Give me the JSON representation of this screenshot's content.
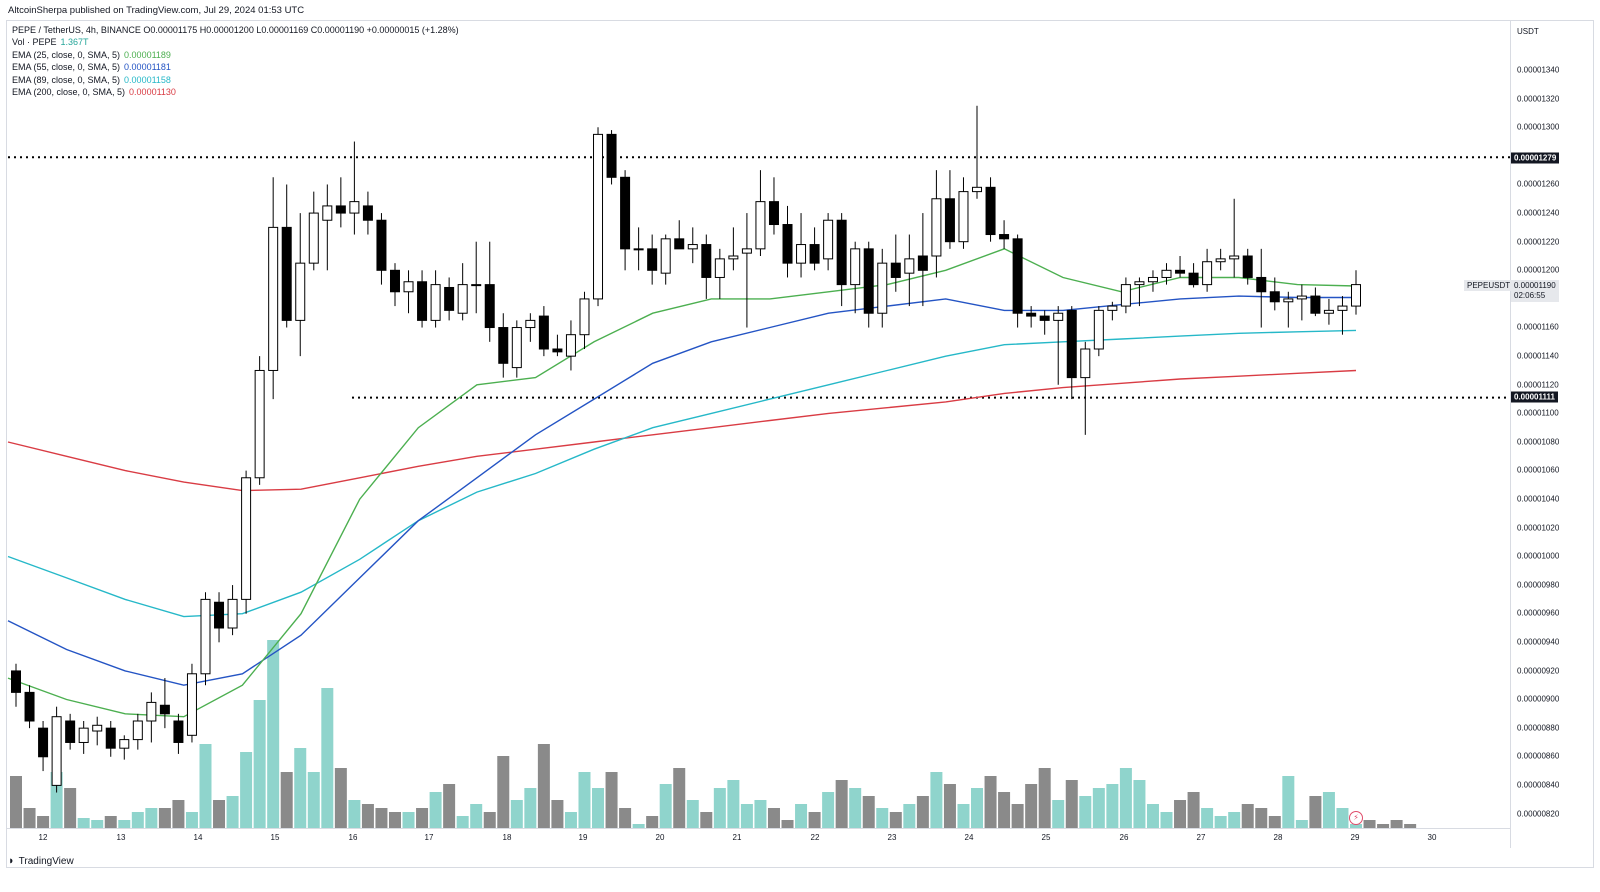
{
  "publisher": "AltcoinSherpa published on TradingView.com, Jul 29, 2024 01:53 UTC",
  "legend": {
    "symbol_line": "PEPE / TetherUS, 4h, BINANCE  O0.00001175  H0.00001200  L0.00001169  C0.00001190  +0.00000015 (+1.28%)",
    "vol_label": "Vol · PEPE",
    "vol_value": "1.367T",
    "ema25_label": "EMA (25, close, 0, SMA, 5)",
    "ema25_value": "0.00001189",
    "ema55_label": "EMA (55, close, 0, SMA, 5)",
    "ema55_value": "0.00001181",
    "ema89_label": "EMA (89, close, 0, SMA, 5)",
    "ema89_value": "0.00001158",
    "ema200_label": "EMA (200, close, 0, SMA, 5)",
    "ema200_value": "0.00001130"
  },
  "price_axis": {
    "currency": "USDT",
    "ticks": [
      "0.00001340",
      "0.00001320",
      "0.00001300",
      "0.00001280",
      "0.00001260",
      "0.00001240",
      "0.00001220",
      "0.00001200",
      "0.00001180",
      "0.00001160",
      "0.00001140",
      "0.00001120",
      "0.00001100",
      "0.00001080",
      "0.00001060",
      "0.00001040",
      "0.00001020",
      "0.00001000",
      "0.00000980",
      "0.00000960",
      "0.00000940",
      "0.00000920",
      "0.00000900",
      "0.00000880",
      "0.00000860",
      "0.00000840",
      "0.00000820"
    ],
    "resistance_label": "0.00001279",
    "support_label": "0.00001111",
    "ticker": "PEPEUSDT",
    "current_price": "0.00001190",
    "countdown": "02:06:55"
  },
  "time_axis": {
    "labels": [
      "12",
      "13",
      "14",
      "15",
      "16",
      "17",
      "18",
      "19",
      "20",
      "21",
      "22",
      "23",
      "24",
      "25",
      "26",
      "27",
      "28",
      "29",
      "30"
    ]
  },
  "branding": "TradingView",
  "colors": {
    "ema25": "#4caf50",
    "ema55": "#2454c4",
    "ema89": "#26b8c8",
    "ema200": "#d93c44",
    "vol_up": "#8fd4cc",
    "vol_down": "#8a8a8a",
    "candle_up": "#ffffff",
    "candle_down": "#000000"
  },
  "chart_data": {
    "type": "candlestick",
    "ylim": [
      8.1e-06,
      1.35e-05
    ],
    "levels": [
      1.279e-05,
      1.111e-05
    ],
    "ema25": [
      9.15e-06,
      9e-06,
      8.9e-06,
      8.88e-06,
      9.1e-06,
      9.6e-06,
      1.04e-05,
      1.09e-05,
      1.12e-05,
      1.125e-05,
      1.15e-05,
      1.17e-05,
      1.18e-05,
      1.18e-05,
      1.185e-05,
      1.19e-05,
      1.2e-05,
      1.215e-05,
      1.195e-05,
      1.185e-05,
      1.195e-05,
      1.195e-05,
      1.19e-05,
      1.189e-05
    ],
    "ema55": [
      9.55e-06,
      9.35e-06,
      9.2e-06,
      9.1e-06,
      9.18e-06,
      9.45e-06,
      9.85e-06,
      1.025e-05,
      1.055e-05,
      1.085e-05,
      1.11e-05,
      1.135e-05,
      1.15e-05,
      1.16e-05,
      1.17e-05,
      1.175e-05,
      1.18e-05,
      1.172e-05,
      1.172e-05,
      1.176e-05,
      1.18e-05,
      1.182e-05,
      1.181e-05,
      1.181e-05
    ],
    "ema89": [
      1e-05,
      9.85e-06,
      9.7e-06,
      9.58e-06,
      9.6e-06,
      9.75e-06,
      9.98e-06,
      1.025e-05,
      1.045e-05,
      1.058e-05,
      1.075e-05,
      1.09e-05,
      1.1e-05,
      1.11e-05,
      1.12e-05,
      1.13e-05,
      1.14e-05,
      1.148e-05,
      1.15e-05,
      1.152e-05,
      1.154e-05,
      1.156e-05,
      1.157e-05,
      1.158e-05
    ],
    "ema200": [
      1.08e-05,
      1.07e-05,
      1.06e-05,
      1.052e-05,
      1.046e-05,
      1.047e-05,
      1.055e-05,
      1.063e-05,
      1.07e-05,
      1.075e-05,
      1.08e-05,
      1.085e-05,
      1.09e-05,
      1.095e-05,
      1.1e-05,
      1.104e-05,
      1.108e-05,
      1.114e-05,
      1.118e-05,
      1.121e-05,
      1.124e-05,
      1.126e-05,
      1.128e-05,
      1.13e-05
    ],
    "candles": [
      {
        "o": 9.2e-06,
        "h": 9.25e-06,
        "l": 8.95e-06,
        "c": 9.05e-06
      },
      {
        "o": 9.05e-06,
        "h": 9.1e-06,
        "l": 8.8e-06,
        "c": 8.85e-06
      },
      {
        "o": 8.8e-06,
        "h": 8.85e-06,
        "l": 8.5e-06,
        "c": 8.6e-06
      },
      {
        "o": 8.4e-06,
        "h": 8.95e-06,
        "l": 8.35e-06,
        "c": 8.88e-06
      },
      {
        "o": 8.85e-06,
        "h": 8.9e-06,
        "l": 8.65e-06,
        "c": 8.7e-06
      },
      {
        "o": 8.7e-06,
        "h": 8.85e-06,
        "l": 8.62e-06,
        "c": 8.8e-06
      },
      {
        "o": 8.78e-06,
        "h": 8.88e-06,
        "l": 8.68e-06,
        "c": 8.82e-06
      },
      {
        "o": 8.8e-06,
        "h": 8.85e-06,
        "l": 8.6e-06,
        "c": 8.66e-06
      },
      {
        "o": 8.66e-06,
        "h": 8.75e-06,
        "l": 8.58e-06,
        "c": 8.72e-06
      },
      {
        "o": 8.72e-06,
        "h": 8.9e-06,
        "l": 8.65e-06,
        "c": 8.85e-06
      },
      {
        "o": 8.85e-06,
        "h": 9.05e-06,
        "l": 8.7e-06,
        "c": 8.98e-06
      },
      {
        "o": 8.96e-06,
        "h": 9.15e-06,
        "l": 8.8e-06,
        "c": 8.9e-06
      },
      {
        "o": 8.85e-06,
        "h": 8.9e-06,
        "l": 8.62e-06,
        "c": 8.7e-06
      },
      {
        "o": 8.75e-06,
        "h": 9.25e-06,
        "l": 8.7e-06,
        "c": 9.18e-06
      },
      {
        "o": 9.18e-06,
        "h": 9.75e-06,
        "l": 9.1e-06,
        "c": 9.7e-06
      },
      {
        "o": 9.68e-06,
        "h": 9.75e-06,
        "l": 9.4e-06,
        "c": 9.5e-06
      },
      {
        "o": 9.5e-06,
        "h": 9.8e-06,
        "l": 9.45e-06,
        "c": 9.7e-06
      },
      {
        "o": 9.7e-06,
        "h": 1.06e-05,
        "l": 9.6e-06,
        "c": 1.055e-05
      },
      {
        "o": 1.055e-05,
        "h": 1.14e-05,
        "l": 1.05e-05,
        "c": 1.13e-05
      },
      {
        "o": 1.13e-05,
        "h": 1.265e-05,
        "l": 1.11e-05,
        "c": 1.23e-05
      },
      {
        "o": 1.23e-05,
        "h": 1.26e-05,
        "l": 1.16e-05,
        "c": 1.165e-05
      },
      {
        "o": 1.165e-05,
        "h": 1.24e-05,
        "l": 1.14e-05,
        "c": 1.205e-05
      },
      {
        "o": 1.205e-05,
        "h": 1.255e-05,
        "l": 1.2e-05,
        "c": 1.24e-05
      },
      {
        "o": 1.235e-05,
        "h": 1.26e-05,
        "l": 1.2e-05,
        "c": 1.245e-05
      },
      {
        "o": 1.245e-05,
        "h": 1.265e-05,
        "l": 1.23e-05,
        "c": 1.24e-05
      },
      {
        "o": 1.24e-05,
        "h": 1.29e-05,
        "l": 1.225e-05,
        "c": 1.248e-05
      },
      {
        "o": 1.245e-05,
        "h": 1.255e-05,
        "l": 1.225e-05,
        "c": 1.235e-05
      },
      {
        "o": 1.235e-05,
        "h": 1.24e-05,
        "l": 1.19e-05,
        "c": 1.2e-05
      },
      {
        "o": 1.2e-05,
        "h": 1.205e-05,
        "l": 1.175e-05,
        "c": 1.185e-05
      },
      {
        "o": 1.185e-05,
        "h": 1.2e-05,
        "l": 1.17e-05,
        "c": 1.192e-05
      },
      {
        "o": 1.192e-05,
        "h": 1.2e-05,
        "l": 1.16e-05,
        "c": 1.165e-05
      },
      {
        "o": 1.165e-05,
        "h": 1.2e-05,
        "l": 1.16e-05,
        "c": 1.19e-05
      },
      {
        "o": 1.188e-05,
        "h": 1.195e-05,
        "l": 1.165e-05,
        "c": 1.172e-05
      },
      {
        "o": 1.17e-05,
        "h": 1.205e-05,
        "l": 1.165e-05,
        "c": 1.19e-05
      },
      {
        "o": 1.19e-05,
        "h": 1.22e-05,
        "l": 1.17e-05,
        "c": 1.19e-05
      },
      {
        "o": 1.19e-05,
        "h": 1.22e-05,
        "l": 1.15e-05,
        "c": 1.16e-05
      },
      {
        "o": 1.16e-05,
        "h": 1.17e-05,
        "l": 1.125e-05,
        "c": 1.135e-05
      },
      {
        "o": 1.132e-05,
        "h": 1.165e-05,
        "l": 1.125e-05,
        "c": 1.16e-05
      },
      {
        "o": 1.16e-05,
        "h": 1.17e-05,
        "l": 1.15e-05,
        "c": 1.165e-05
      },
      {
        "o": 1.168e-05,
        "h": 1.175e-05,
        "l": 1.14e-05,
        "c": 1.145e-05
      },
      {
        "o": 1.145e-05,
        "h": 1.155e-05,
        "l": 1.14e-05,
        "c": 1.143e-05
      },
      {
        "o": 1.14e-05,
        "h": 1.165e-05,
        "l": 1.13e-05,
        "c": 1.155e-05
      },
      {
        "o": 1.155e-05,
        "h": 1.185e-05,
        "l": 1.145e-05,
        "c": 1.18e-05
      },
      {
        "o": 1.18e-05,
        "h": 1.3e-05,
        "l": 1.175e-05,
        "c": 1.295e-05
      },
      {
        "o": 1.295e-05,
        "h": 1.298e-05,
        "l": 1.26e-05,
        "c": 1.265e-05
      },
      {
        "o": 1.265e-05,
        "h": 1.27e-05,
        "l": 1.2e-05,
        "c": 1.215e-05
      },
      {
        "o": 1.215e-05,
        "h": 1.23e-05,
        "l": 1.2e-05,
        "c": 1.215e-05
      },
      {
        "o": 1.215e-05,
        "h": 1.225e-05,
        "l": 1.19e-05,
        "c": 1.2e-05
      },
      {
        "o": 1.198e-05,
        "h": 1.225e-05,
        "l": 1.19e-05,
        "c": 1.222e-05
      },
      {
        "o": 1.222e-05,
        "h": 1.235e-05,
        "l": 1.215e-05,
        "c": 1.215e-05
      },
      {
        "o": 1.215e-05,
        "h": 1.23e-05,
        "l": 1.205e-05,
        "c": 1.218e-05
      },
      {
        "o": 1.218e-05,
        "h": 1.225e-05,
        "l": 1.18e-05,
        "c": 1.195e-05
      },
      {
        "o": 1.195e-05,
        "h": 1.215e-05,
        "l": 1.18e-05,
        "c": 1.208e-05
      },
      {
        "o": 1.208e-05,
        "h": 1.23e-05,
        "l": 1.2e-05,
        "c": 1.21e-05
      },
      {
        "o": 1.212e-05,
        "h": 1.24e-05,
        "l": 1.16e-05,
        "c": 1.215e-05
      },
      {
        "o": 1.215e-05,
        "h": 1.27e-05,
        "l": 1.21e-05,
        "c": 1.248e-05
      },
      {
        "o": 1.248e-05,
        "h": 1.265e-05,
        "l": 1.225e-05,
        "c": 1.232e-05
      },
      {
        "o": 1.232e-05,
        "h": 1.245e-05,
        "l": 1.195e-05,
        "c": 1.205e-05
      },
      {
        "o": 1.205e-05,
        "h": 1.24e-05,
        "l": 1.195e-05,
        "c": 1.218e-05
      },
      {
        "o": 1.218e-05,
        "h": 1.23e-05,
        "l": 1.2e-05,
        "c": 1.205e-05
      },
      {
        "o": 1.208e-05,
        "h": 1.24e-05,
        "l": 1.2e-05,
        "c": 1.235e-05
      },
      {
        "o": 1.235e-05,
        "h": 1.24e-05,
        "l": 1.175e-05,
        "c": 1.19e-05
      },
      {
        "o": 1.19e-05,
        "h": 1.22e-05,
        "l": 1.17e-05,
        "c": 1.215e-05
      },
      {
        "o": 1.215e-05,
        "h": 1.22e-05,
        "l": 1.16e-05,
        "c": 1.17e-05
      },
      {
        "o": 1.17e-05,
        "h": 1.215e-05,
        "l": 1.16e-05,
        "c": 1.205e-05
      },
      {
        "o": 1.205e-05,
        "h": 1.225e-05,
        "l": 1.185e-05,
        "c": 1.195e-05
      },
      {
        "o": 1.198e-05,
        "h": 1.225e-05,
        "l": 1.175e-05,
        "c": 1.208e-05
      },
      {
        "o": 1.21e-05,
        "h": 1.24e-05,
        "l": 1.175e-05,
        "c": 1.2e-05
      },
      {
        "o": 1.21e-05,
        "h": 1.27e-05,
        "l": 1.195e-05,
        "c": 1.25e-05
      },
      {
        "o": 1.25e-05,
        "h": 1.27e-05,
        "l": 1.215e-05,
        "c": 1.22e-05
      },
      {
        "o": 1.22e-05,
        "h": 1.265e-05,
        "l": 1.215e-05,
        "c": 1.255e-05
      },
      {
        "o": 1.255e-05,
        "h": 1.315e-05,
        "l": 1.25e-05,
        "c": 1.258e-05
      },
      {
        "o": 1.258e-05,
        "h": 1.265e-05,
        "l": 1.22e-05,
        "c": 1.225e-05
      },
      {
        "o": 1.225e-05,
        "h": 1.235e-05,
        "l": 1.215e-05,
        "c": 1.222e-05
      },
      {
        "o": 1.222e-05,
        "h": 1.225e-05,
        "l": 1.16e-05,
        "c": 1.17e-05
      },
      {
        "o": 1.17e-05,
        "h": 1.175e-05,
        "l": 1.16e-05,
        "c": 1.168e-05
      },
      {
        "o": 1.168e-05,
        "h": 1.172e-05,
        "l": 1.155e-05,
        "c": 1.165e-05
      },
      {
        "o": 1.165e-05,
        "h": 1.175e-05,
        "l": 1.12e-05,
        "c": 1.17e-05
      },
      {
        "o": 1.172e-05,
        "h": 1.175e-05,
        "l": 1.11e-05,
        "c": 1.125e-05
      },
      {
        "o": 1.125e-05,
        "h": 1.15e-05,
        "l": 1.085e-05,
        "c": 1.145e-05
      },
      {
        "o": 1.145e-05,
        "h": 1.175e-05,
        "l": 1.14e-05,
        "c": 1.172e-05
      },
      {
        "o": 1.172e-05,
        "h": 1.178e-05,
        "l": 1.165e-05,
        "c": 1.175e-05
      },
      {
        "o": 1.175e-05,
        "h": 1.195e-05,
        "l": 1.17e-05,
        "c": 1.19e-05
      },
      {
        "o": 1.19e-05,
        "h": 1.195e-05,
        "l": 1.175e-05,
        "c": 1.192e-05
      },
      {
        "o": 1.192e-05,
        "h": 1.2e-05,
        "l": 1.185e-05,
        "c": 1.195e-05
      },
      {
        "o": 1.195e-05,
        "h": 1.205e-05,
        "l": 1.19e-05,
        "c": 1.2e-05
      },
      {
        "o": 1.2e-05,
        "h": 1.21e-05,
        "l": 1.195e-05,
        "c": 1.198e-05
      },
      {
        "o": 1.198e-05,
        "h": 1.205e-05,
        "l": 1.188e-05,
        "c": 1.19e-05
      },
      {
        "o": 1.19e-05,
        "h": 1.215e-05,
        "l": 1.185e-05,
        "c": 1.206e-05
      },
      {
        "o": 1.206e-05,
        "h": 1.215e-05,
        "l": 1.2e-05,
        "c": 1.208e-05
      },
      {
        "o": 1.208e-05,
        "h": 1.25e-05,
        "l": 1.195e-05,
        "c": 1.21e-05
      },
      {
        "o": 1.21e-05,
        "h": 1.215e-05,
        "l": 1.19e-05,
        "c": 1.195e-05
      },
      {
        "o": 1.195e-05,
        "h": 1.215e-05,
        "l": 1.16e-05,
        "c": 1.185e-05
      },
      {
        "o": 1.185e-05,
        "h": 1.195e-05,
        "l": 1.172e-05,
        "c": 1.178e-05
      },
      {
        "o": 1.178e-05,
        "h": 1.185e-05,
        "l": 1.16e-05,
        "c": 1.18e-05
      },
      {
        "o": 1.18e-05,
        "h": 1.19e-05,
        "l": 1.165e-05,
        "c": 1.182e-05
      },
      {
        "o": 1.182e-05,
        "h": 1.188e-05,
        "l": 1.168e-05,
        "c": 1.17e-05
      },
      {
        "o": 1.17e-05,
        "h": 1.18e-05,
        "l": 1.162e-05,
        "c": 1.172e-05
      },
      {
        "o": 1.172e-05,
        "h": 1.182e-05,
        "l": 1.155e-05,
        "c": 1.175e-05
      },
      {
        "o": 1.175e-05,
        "h": 1.2e-05,
        "l": 1.169e-05,
        "c": 1.19e-05
      }
    ],
    "volume": [
      0.26,
      0.1,
      0.06,
      0.28,
      0.2,
      0.05,
      0.04,
      0.06,
      0.04,
      0.08,
      0.1,
      0.1,
      0.14,
      0.08,
      0.42,
      0.14,
      0.16,
      0.38,
      0.64,
      0.94,
      0.28,
      0.4,
      0.28,
      0.7,
      0.3,
      0.14,
      0.12,
      0.1,
      0.08,
      0.08,
      0.1,
      0.18,
      0.22,
      0.06,
      0.12,
      0.08,
      0.36,
      0.14,
      0.2,
      0.42,
      0.14,
      0.08,
      0.28,
      0.2,
      0.28,
      0.1,
      0.02,
      0.06,
      0.22,
      0.3,
      0.14,
      0.08,
      0.2,
      0.24,
      0.12,
      0.14,
      0.1,
      0.04,
      0.12,
      0.08,
      0.18,
      0.24,
      0.2,
      0.16,
      0.1,
      0.08,
      0.12,
      0.16,
      0.28,
      0.22,
      0.12,
      0.2,
      0.26,
      0.18,
      0.12,
      0.22,
      0.3,
      0.14,
      0.24,
      0.16,
      0.2,
      0.22,
      0.3,
      0.24,
      0.12,
      0.08,
      0.14,
      0.18,
      0.1,
      0.06,
      0.08,
      0.12,
      0.1,
      0.06,
      0.26,
      0.04,
      0.16,
      0.18,
      0.1,
      0.02,
      0.04,
      0.02,
      0.04,
      0.02
    ]
  }
}
